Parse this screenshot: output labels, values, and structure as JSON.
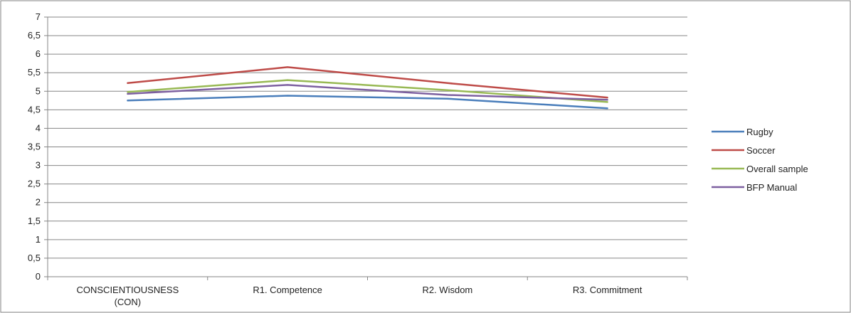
{
  "chart_data": {
    "type": "line",
    "categories": [
      "CONSCIENTIOUSNESS (CON)",
      "R1. Competence",
      "R2. Wisdom",
      "R3. Commitment"
    ],
    "category_lines": [
      [
        "CONSCIENTIOUSNESS",
        "(CON)"
      ],
      [
        "R1. Competence"
      ],
      [
        "R2. Wisdom"
      ],
      [
        "R3. Commitment"
      ]
    ],
    "series": [
      {
        "name": "Rugby",
        "color": "#4a7ebb",
        "values": [
          4.75,
          4.88,
          4.8,
          4.54
        ]
      },
      {
        "name": "Soccer",
        "color": "#be4b48",
        "values": [
          5.22,
          5.65,
          5.22,
          4.83
        ]
      },
      {
        "name": "Overall sample",
        "color": "#98b954",
        "values": [
          4.98,
          5.3,
          5.03,
          4.71
        ]
      },
      {
        "name": "BFP Manual",
        "color": "#7d60a0",
        "values": [
          4.93,
          5.17,
          4.9,
          4.77
        ]
      }
    ],
    "y_ticks": [
      "0",
      "0,5",
      "1",
      "1,5",
      "2",
      "2,5",
      "3",
      "3,5",
      "4",
      "4,5",
      "5",
      "5,5",
      "6",
      "6,5",
      "7"
    ],
    "ylim": [
      0,
      7
    ],
    "grid": true,
    "legend_position": "right"
  }
}
